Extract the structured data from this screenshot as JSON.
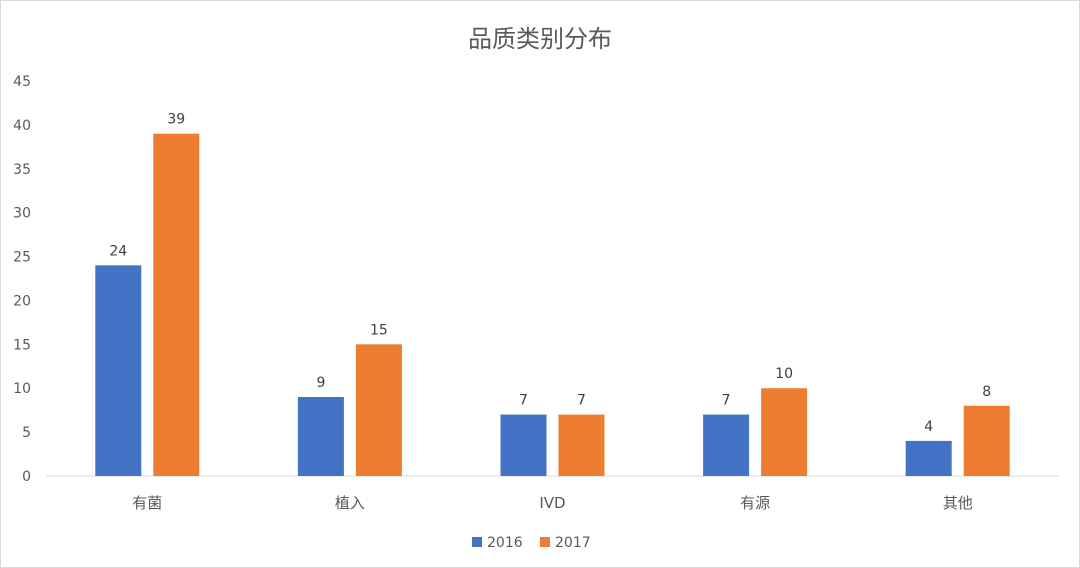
{
  "chart_data": {
    "type": "bar",
    "title": "品质类别分布",
    "categories": [
      "有菌",
      "植入",
      "IVD",
      "有源",
      "其他"
    ],
    "series": [
      {
        "name": "2016",
        "values": [
          24,
          9,
          7,
          7,
          4
        ],
        "color": "#4472C4"
      },
      {
        "name": "2017",
        "values": [
          39,
          15,
          7,
          10,
          8
        ],
        "color": "#ED7D31"
      }
    ],
    "ylim": [
      0,
      45
    ],
    "yticks": [
      0,
      5,
      10,
      15,
      20,
      25,
      30,
      35,
      40,
      45
    ],
    "grid": false,
    "legend": "bottom-center",
    "data_labels": true
  }
}
